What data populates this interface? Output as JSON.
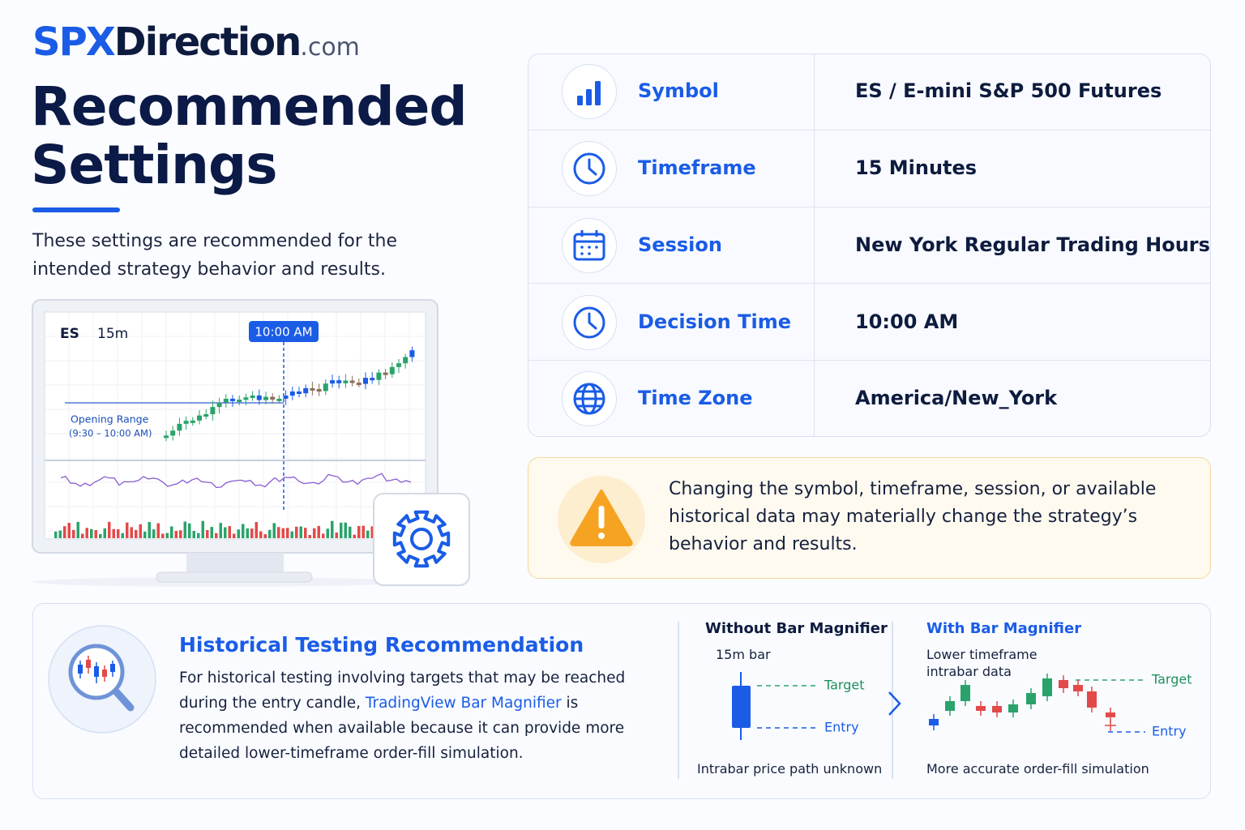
{
  "brand": {
    "primary": "SPX",
    "secondary": "Direction",
    "suffix": ".com"
  },
  "header": {
    "title_line1": "Recommended",
    "title_line2": "Settings",
    "subtitle": "These settings are recommended for the intended strategy behavior and results."
  },
  "illustration": {
    "symbol": "ES",
    "timeframe": "15m",
    "marker": "10:00 AM",
    "range_label": "Opening Range",
    "range_time": "(9:30 – 10:00 AM)"
  },
  "settings": [
    {
      "label": "Symbol",
      "value": "ES / E-mini S&P 500 Futures"
    },
    {
      "label": "Timeframe",
      "value": "15 Minutes"
    },
    {
      "label": "Session",
      "value": "New York Regular Trading Hours"
    },
    {
      "label": "Decision Time",
      "value": "10:00 AM"
    },
    {
      "label": "Time Zone",
      "value": "America/New_York"
    }
  ],
  "warning": "Changing the symbol, timeframe, session, or available historical data may materially change the strategy’s behavior and results.",
  "historical": {
    "title": "Historical Testing Recommendation",
    "text_before": "For historical testing involving targets that may be reached during the entry candle,",
    "link": "TradingView Bar Magnifier",
    "text_after": "is recommended when available because it can provide more detailed lower-timeframe order-fill simulation."
  },
  "comparison": {
    "without": {
      "title": "Without Bar Magnifier",
      "subtitle": "15m bar",
      "target": "Target",
      "entry": "Entry",
      "caption": "Intrabar price path unknown"
    },
    "with": {
      "title": "With Bar Magnifier",
      "subtitle": "Lower timeframe intrabar data",
      "target": "Target",
      "entry": "Entry",
      "caption": "More accurate order-fill simulation"
    }
  }
}
